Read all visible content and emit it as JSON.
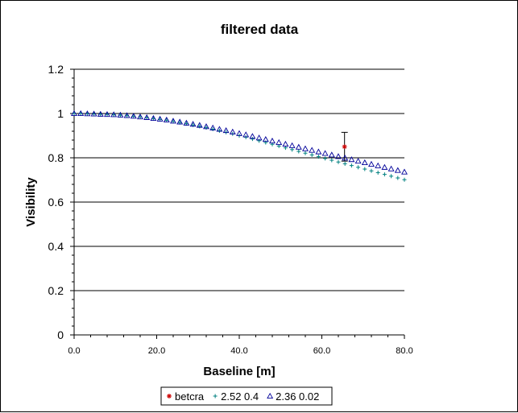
{
  "chart_data": {
    "type": "scatter",
    "title": "filtered data",
    "xlabel": "Baseline [m]",
    "ylabel": "Visibility",
    "xlim": [
      0,
      80
    ],
    "ylim": [
      0,
      1.2
    ],
    "x_ticks": [
      "0.0",
      "20.0",
      "40.0",
      "60.0",
      "80.0"
    ],
    "y_ticks": [
      "0",
      "0.2",
      "0.4",
      "0.6",
      "0.8",
      "1",
      "1.2"
    ],
    "grid": "horizontal",
    "legend_position": "bottom",
    "series": [
      {
        "name": "betcra",
        "marker": "asterisk",
        "color": "#cc0000",
        "points": [
          {
            "x": 65.5,
            "y": 0.85,
            "err": 0.065
          }
        ]
      },
      {
        "name": "2.52 0.4",
        "marker": "plus",
        "color": "#008080",
        "points": [
          [
            0,
            1.0
          ],
          [
            1.6,
            1.0
          ],
          [
            3.2,
            0.999
          ],
          [
            4.8,
            0.998
          ],
          [
            6.4,
            0.997
          ],
          [
            8.0,
            0.996
          ],
          [
            9.6,
            0.994
          ],
          [
            11.2,
            0.992
          ],
          [
            12.8,
            0.99
          ],
          [
            14.4,
            0.987
          ],
          [
            16.0,
            0.984
          ],
          [
            17.6,
            0.981
          ],
          [
            19.2,
            0.977
          ],
          [
            20.8,
            0.973
          ],
          [
            22.4,
            0.969
          ],
          [
            24.0,
            0.964
          ],
          [
            25.6,
            0.959
          ],
          [
            27.2,
            0.954
          ],
          [
            28.8,
            0.948
          ],
          [
            30.4,
            0.942
          ],
          [
            32.0,
            0.936
          ],
          [
            33.6,
            0.929
          ],
          [
            35.2,
            0.922
          ],
          [
            36.8,
            0.915
          ],
          [
            38.4,
            0.908
          ],
          [
            40.0,
            0.9
          ],
          [
            41.6,
            0.893
          ],
          [
            43.2,
            0.885
          ],
          [
            44.8,
            0.877
          ],
          [
            46.4,
            0.869
          ],
          [
            48.0,
            0.861
          ],
          [
            49.6,
            0.853
          ],
          [
            51.2,
            0.845
          ],
          [
            52.8,
            0.837
          ],
          [
            54.4,
            0.829
          ],
          [
            56.0,
            0.821
          ],
          [
            57.6,
            0.813
          ],
          [
            59.2,
            0.805
          ],
          [
            60.8,
            0.797
          ],
          [
            62.4,
            0.789
          ],
          [
            64.0,
            0.781
          ],
          [
            65.6,
            0.773
          ],
          [
            67.2,
            0.765
          ],
          [
            68.8,
            0.757
          ],
          [
            70.4,
            0.749
          ],
          [
            72.0,
            0.741
          ],
          [
            73.6,
            0.733
          ],
          [
            75.2,
            0.725
          ],
          [
            76.8,
            0.717
          ],
          [
            78.4,
            0.709
          ],
          [
            80.0,
            0.701
          ]
        ]
      },
      {
        "name": "2.36 0.02",
        "marker": "triangle",
        "color": "#000099",
        "points": [
          [
            0,
            1.0
          ],
          [
            1.6,
            1.0
          ],
          [
            3.2,
            0.999
          ],
          [
            4.8,
            0.998
          ],
          [
            6.4,
            0.997
          ],
          [
            8.0,
            0.996
          ],
          [
            9.6,
            0.995
          ],
          [
            11.2,
            0.993
          ],
          [
            12.8,
            0.991
          ],
          [
            14.4,
            0.988
          ],
          [
            16.0,
            0.985
          ],
          [
            17.6,
            0.982
          ],
          [
            19.2,
            0.978
          ],
          [
            20.8,
            0.975
          ],
          [
            22.4,
            0.971
          ],
          [
            24.0,
            0.966
          ],
          [
            25.6,
            0.962
          ],
          [
            27.2,
            0.957
          ],
          [
            28.8,
            0.952
          ],
          [
            30.4,
            0.947
          ],
          [
            32.0,
            0.941
          ],
          [
            33.6,
            0.935
          ],
          [
            35.2,
            0.929
          ],
          [
            36.8,
            0.923
          ],
          [
            38.4,
            0.917
          ],
          [
            40.0,
            0.91
          ],
          [
            41.6,
            0.904
          ],
          [
            43.2,
            0.897
          ],
          [
            44.8,
            0.89
          ],
          [
            46.4,
            0.883
          ],
          [
            48.0,
            0.876
          ],
          [
            49.6,
            0.869
          ],
          [
            51.2,
            0.862
          ],
          [
            52.8,
            0.855
          ],
          [
            54.4,
            0.848
          ],
          [
            56.0,
            0.841
          ],
          [
            57.6,
            0.834
          ],
          [
            59.2,
            0.827
          ],
          [
            60.8,
            0.82
          ],
          [
            62.4,
            0.813
          ],
          [
            64.0,
            0.806
          ],
          [
            65.6,
            0.799
          ],
          [
            67.2,
            0.792
          ],
          [
            68.8,
            0.785
          ],
          [
            70.4,
            0.778
          ],
          [
            72.0,
            0.771
          ],
          [
            73.6,
            0.764
          ],
          [
            75.2,
            0.757
          ],
          [
            76.8,
            0.75
          ],
          [
            78.4,
            0.743
          ],
          [
            80.0,
            0.736
          ]
        ]
      }
    ]
  }
}
